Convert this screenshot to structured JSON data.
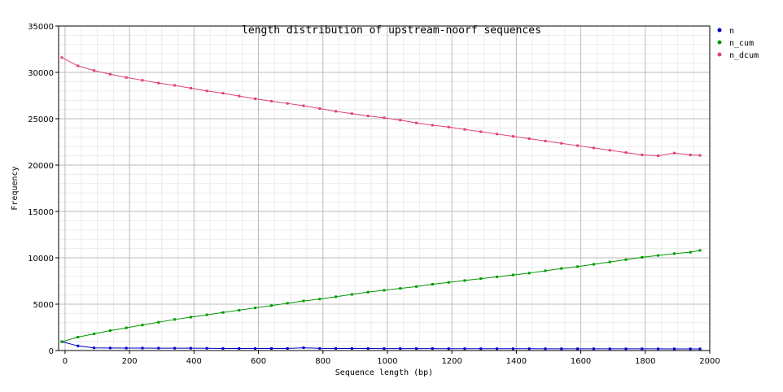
{
  "chart_data": {
    "type": "line",
    "title": "length distribution of upstream-noorf sequences",
    "xlabel": "Sequence length (bp)",
    "ylabel": "Frequency",
    "xlim": [
      -20,
      2000
    ],
    "ylim": [
      0,
      35000
    ],
    "x_ticks": [
      0,
      200,
      400,
      600,
      800,
      1000,
      1200,
      1400,
      1600,
      1800,
      2000
    ],
    "y_ticks": [
      0,
      5000,
      10000,
      15000,
      20000,
      25000,
      30000,
      35000
    ],
    "grid": true,
    "legend_position": "right",
    "x": [
      -10,
      40,
      90,
      140,
      190,
      240,
      290,
      340,
      390,
      440,
      490,
      540,
      590,
      640,
      690,
      740,
      790,
      840,
      890,
      940,
      990,
      1040,
      1090,
      1140,
      1190,
      1240,
      1290,
      1340,
      1390,
      1440,
      1490,
      1540,
      1590,
      1640,
      1690,
      1740,
      1790,
      1840,
      1890,
      1940,
      1970
    ],
    "series": [
      {
        "name": "n",
        "color": "#0000cc",
        "values": [
          950,
          500,
          280,
          270,
          260,
          260,
          255,
          250,
          250,
          240,
          220,
          220,
          215,
          215,
          220,
          300,
          230,
          220,
          220,
          215,
          210,
          210,
          205,
          210,
          200,
          200,
          200,
          195,
          195,
          195,
          190,
          190,
          190,
          190,
          185,
          185,
          185,
          185,
          180,
          180,
          180
        ]
      },
      {
        "name": "n_cum",
        "color": "#009900",
        "values": [
          950,
          1450,
          1800,
          2150,
          2450,
          2750,
          3050,
          3350,
          3600,
          3850,
          4100,
          4350,
          4600,
          4850,
          5100,
          5350,
          5550,
          5800,
          6050,
          6300,
          6500,
          6700,
          6900,
          7150,
          7350,
          7550,
          7750,
          7950,
          8150,
          8350,
          8600,
          8850,
          9050,
          9300,
          9550,
          9800,
          10050,
          10250,
          10450,
          10600,
          10800
        ]
      },
      {
        "name": "n_dcum",
        "color": "#e0407a",
        "values": [
          31600,
          30700,
          30200,
          29800,
          29450,
          29150,
          28850,
          28600,
          28300,
          28000,
          27750,
          27450,
          27150,
          26900,
          26650,
          26400,
          26100,
          25800,
          25550,
          25300,
          25100,
          24850,
          24550,
          24300,
          24100,
          23850,
          23600,
          23350,
          23100,
          22850,
          22600,
          22350,
          22100,
          21850,
          21600,
          21350,
          21100,
          21000,
          21300,
          21100,
          21050
        ]
      }
    ]
  }
}
